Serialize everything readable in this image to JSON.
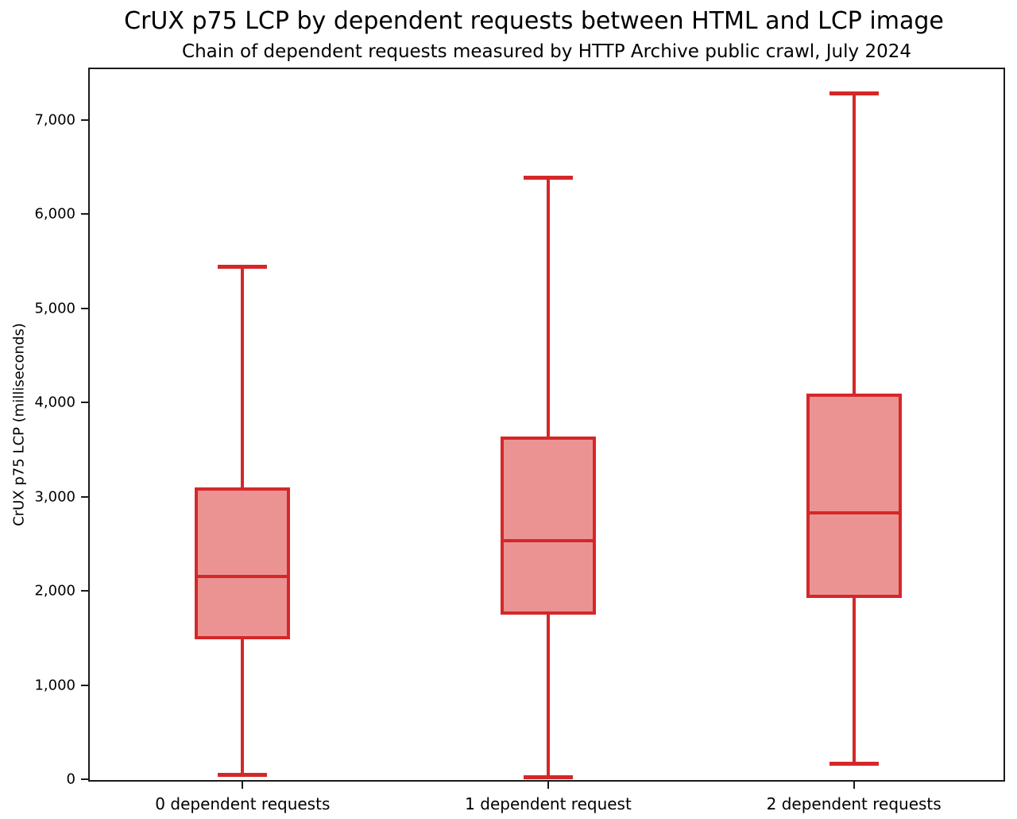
{
  "chart_data": {
    "type": "boxplot",
    "title": "CrUX p75 LCP by dependent requests between HTML and LCP image",
    "subtitle": "Chain of dependent requests measured by HTTP Archive public crawl, July 2024",
    "ylabel": "CrUX p75 LCP (milliseconds)",
    "xlabel": "",
    "categories": [
      "0 dependent requests",
      "1 dependent request",
      "2 dependent requests"
    ],
    "series": [
      {
        "category": "0 dependent requests",
        "whisker_low": 45,
        "q1": 1505,
        "median": 2155,
        "q3": 3085,
        "whisker_high": 5445
      },
      {
        "category": "1 dependent request",
        "whisker_low": 25,
        "q1": 1765,
        "median": 2535,
        "q3": 3625,
        "whisker_high": 6385
      },
      {
        "category": "2 dependent requests",
        "whisker_low": 170,
        "q1": 1945,
        "median": 2830,
        "q3": 4080,
        "whisker_high": 7280
      }
    ],
    "y_ticks": [
      0,
      1000,
      2000,
      3000,
      4000,
      5000,
      6000,
      7000
    ],
    "y_tick_labels": [
      "0",
      "1,000",
      "2,000",
      "3,000",
      "4,000",
      "5,000",
      "6,000",
      "7,000"
    ],
    "ylim": [
      -40,
      7540
    ],
    "grid": false,
    "legend": null,
    "colors": {
      "box_fill": "#eb9393",
      "box_stroke": "#d62728",
      "axis": "#1a1a1a",
      "text": "#000000"
    }
  }
}
